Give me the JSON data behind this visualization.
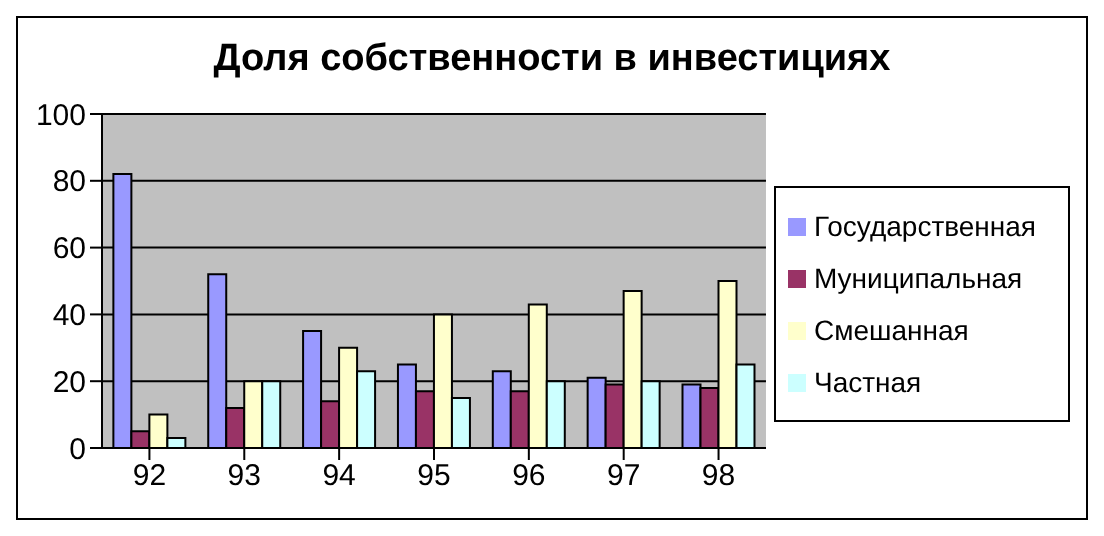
{
  "chart_data": {
    "type": "bar",
    "title": "Доля собственности в инвестициях",
    "categories": [
      "92",
      "93",
      "94",
      "95",
      "96",
      "97",
      "98"
    ],
    "series": [
      {
        "name": "Государственная",
        "color": "#9999ff",
        "values": [
          82,
          52,
          35,
          25,
          23,
          21,
          19
        ]
      },
      {
        "name": "Муниципальная",
        "color": "#993366",
        "values": [
          5,
          12,
          14,
          17,
          17,
          19,
          18
        ]
      },
      {
        "name": "Смешанная",
        "color": "#ffffcc",
        "values": [
          10,
          20,
          30,
          40,
          43,
          47,
          50
        ]
      },
      {
        "name": "Частная",
        "color": "#ccffff",
        "values": [
          3,
          20,
          23,
          15,
          20,
          20,
          25
        ]
      }
    ],
    "ylim": [
      0,
      100
    ],
    "yticks": [
      0,
      20,
      40,
      60,
      80,
      100
    ],
    "grid": "y",
    "legend": "right"
  }
}
